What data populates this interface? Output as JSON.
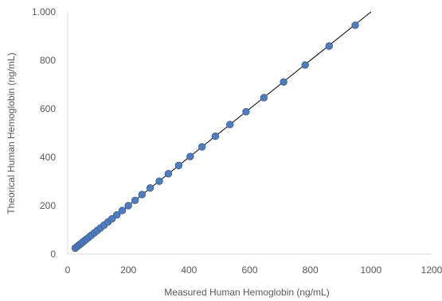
{
  "chart_data": {
    "type": "scatter",
    "title": "",
    "xlabel": "Measured Human Hemoglobin (ng/mL)",
    "ylabel": "Theorical Human Hemoglobin (ng/mL)",
    "xlim": [
      0,
      1200
    ],
    "ylim": [
      0,
      1000
    ],
    "x_ticks": [
      0,
      200,
      400,
      600,
      800,
      1000,
      1200
    ],
    "y_ticks": [
      0,
      200,
      400,
      600,
      800,
      1000
    ],
    "x_tick_labels": [
      "0",
      "200",
      "400",
      "600",
      "800",
      "1000",
      "1200"
    ],
    "y_tick_labels": [
      "0",
      "200",
      "400",
      "600",
      "800",
      "1.000"
    ],
    "grid": false,
    "legend": "none",
    "marker_color": "#4F7CBE",
    "marker_edge_color": "#3A5F95",
    "trendline_color": "#000000",
    "trendline": {
      "slope": 1.0,
      "intercept": 0,
      "x_range": [
        25,
        1000
      ]
    },
    "series": [
      {
        "x": [
          25,
          30,
          35,
          40,
          45,
          50,
          56,
          62,
          70,
          78,
          88,
          98,
          108,
          120,
          133,
          146,
          162,
          180,
          200,
          222,
          245,
          272,
          302,
          332,
          366,
          404,
          443,
          487,
          535,
          588,
          647,
          712,
          783,
          862,
          948
        ],
        "y": [
          25,
          30,
          35,
          40,
          45,
          50,
          56,
          62,
          70,
          78,
          88,
          98,
          108,
          120,
          133,
          146,
          162,
          180,
          200,
          222,
          246,
          273,
          301,
          332,
          366,
          403,
          443,
          487,
          535,
          588,
          646,
          711,
          781,
          859,
          945
        ]
      }
    ]
  }
}
